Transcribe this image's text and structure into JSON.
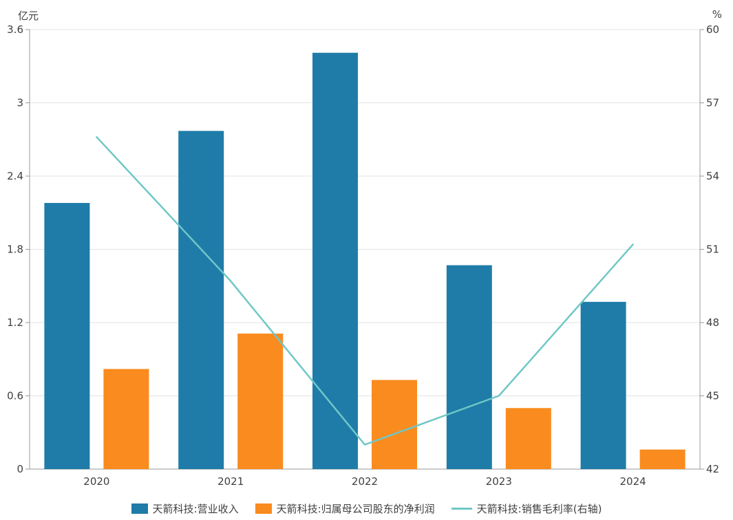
{
  "chart_data": {
    "type": "bar",
    "subtype": "grouped-bars-with-line-overlay",
    "categories": [
      "2020",
      "2021",
      "2022",
      "2023",
      "2024"
    ],
    "series": [
      {
        "name": "天箭科技:营业收入",
        "type": "bar",
        "axis": "left",
        "color": "#1F7CA8",
        "values": [
          2.18,
          2.77,
          3.41,
          1.67,
          1.37
        ]
      },
      {
        "name": "天箭科技:归属母公司股东的净利润",
        "type": "bar",
        "axis": "left",
        "color": "#F98B1F",
        "values": [
          0.82,
          1.11,
          0.73,
          0.5,
          0.16
        ]
      },
      {
        "name": "天箭科技:销售毛利率(右轴)",
        "type": "line",
        "axis": "right",
        "color": "#6FC7C6",
        "values": [
          55.6,
          49.7,
          43.0,
          45.0,
          51.2
        ]
      }
    ],
    "left_axis": {
      "unit": "亿元",
      "min": 0,
      "max": 3.6,
      "ticks": [
        0,
        0.6,
        1.2,
        1.8,
        2.4,
        3,
        3.6
      ],
      "tick_labels": [
        "0",
        "0.6",
        "1.2",
        "1.8",
        "2.4",
        "3",
        "3.6"
      ]
    },
    "right_axis": {
      "unit": "%",
      "min": 42,
      "max": 60,
      "ticks": [
        42,
        45,
        48,
        51,
        54,
        57,
        60
      ],
      "tick_labels": [
        "42",
        "45",
        "48",
        "51",
        "54",
        "57",
        "60"
      ]
    },
    "grid": true,
    "legend_position": "bottom",
    "colors": {
      "grid_line": "#E3E3E3",
      "axis_line": "#9A9A9A",
      "text": "#404040"
    }
  }
}
